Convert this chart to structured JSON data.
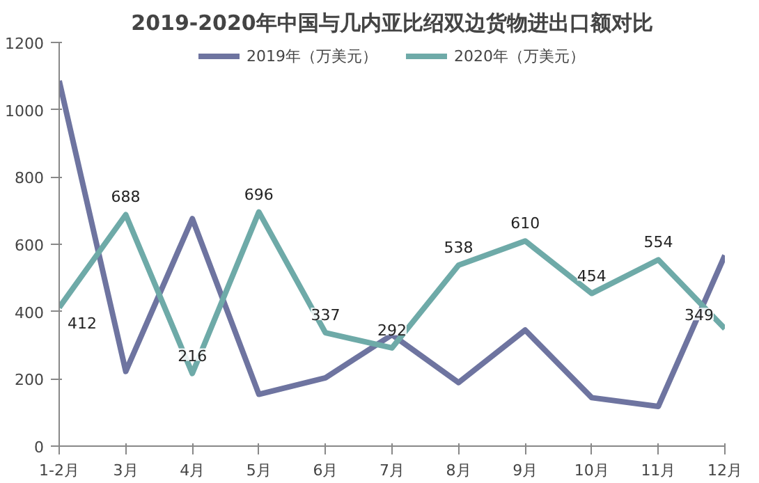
{
  "chart_data": {
    "type": "line",
    "title": "2019-2020年中国与几内亚比绍双边货物进出口额对比",
    "categories": [
      "1-2月",
      "3月",
      "4月",
      "5月",
      "6月",
      "7月",
      "8月",
      "9月",
      "10月",
      "11月",
      "12月"
    ],
    "series": [
      {
        "name": "2019年（万美元）",
        "color": "#6e74a0",
        "values": [
          1086,
          222,
          676,
          154,
          203,
          331,
          189,
          345,
          144,
          118,
          567
        ]
      },
      {
        "name": "2020年（万美元）",
        "color": "#6eaaa8",
        "values": [
          412,
          688,
          216,
          696,
          337,
          292,
          538,
          610,
          454,
          554,
          349
        ],
        "value_labels": [
          "412",
          "688",
          "216",
          "696",
          "337",
          "292",
          "538",
          "610",
          "454",
          "554",
          "349"
        ]
      }
    ],
    "ylim": [
      0,
      1200
    ],
    "yticks": [
      0,
      200,
      400,
      600,
      800,
      1000,
      1200
    ],
    "grid": false,
    "legend": "top",
    "marker": "none",
    "line_style": "solid"
  }
}
